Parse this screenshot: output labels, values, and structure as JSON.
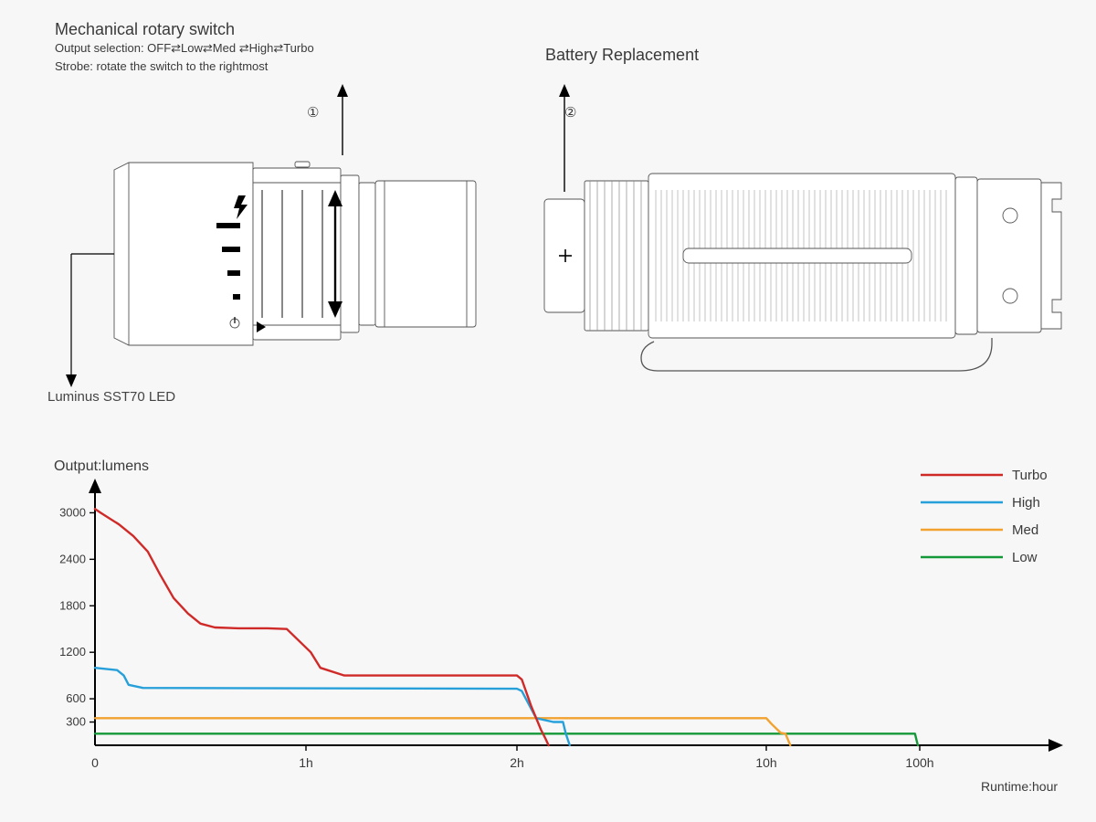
{
  "annotations": {
    "switch_title": "Mechanical rotary switch",
    "switch_line1": "Output selection: OFF⇄Low⇄Med ⇄High⇄Turbo",
    "switch_line2": "Strobe: rotate the switch to the rightmost",
    "battery_title": "Battery Replacement",
    "led_label": "Luminus SST70 LED",
    "callout1": "①",
    "callout2": "②"
  },
  "diagram": {
    "stroke": "#555555",
    "stroke_width": 0.9,
    "fill": "#ffffff",
    "arrow_color": "#000000"
  },
  "chart": {
    "type": "line",
    "title": "Output:lumens",
    "xlabel": "Runtime:hour",
    "x_ticks": [
      "0",
      "1h",
      "2h",
      "10h",
      "100h"
    ],
    "x_tick_pos": [
      0,
      0.22,
      0.44,
      0.7,
      0.86
    ],
    "y_ticks": [
      3000,
      2400,
      1800,
      1200,
      600,
      300
    ],
    "y_max_for_scale": 3300,
    "background": "#f7f7f8",
    "axis_color": "#000000",
    "tick_mark_color": "#000000",
    "line_width": 2.4,
    "legend": [
      {
        "label": "Turbo",
        "color": "#cf2a28"
      },
      {
        "label": "High",
        "color": "#27a0da"
      },
      {
        "label": "Med",
        "color": "#f2a22e"
      },
      {
        "label": "Low",
        "color": "#159838"
      }
    ],
    "series": {
      "Turbo": {
        "color": "#cf2a28",
        "points": [
          [
            0,
            3050
          ],
          [
            0.006,
            3000
          ],
          [
            0.025,
            2850
          ],
          [
            0.04,
            2700
          ],
          [
            0.055,
            2500
          ],
          [
            0.068,
            2200
          ],
          [
            0.082,
            1900
          ],
          [
            0.097,
            1700
          ],
          [
            0.11,
            1570
          ],
          [
            0.125,
            1520
          ],
          [
            0.15,
            1510
          ],
          [
            0.18,
            1510
          ],
          [
            0.2,
            1500
          ],
          [
            0.225,
            1200
          ],
          [
            0.235,
            1000
          ],
          [
            0.26,
            900
          ],
          [
            0.44,
            900
          ],
          [
            0.445,
            850
          ],
          [
            0.455,
            500
          ],
          [
            0.465,
            200
          ],
          [
            0.47,
            80
          ],
          [
            0.473,
            0
          ]
        ]
      },
      "High": {
        "color": "#27a0da",
        "points": [
          [
            0,
            1000
          ],
          [
            0.023,
            970
          ],
          [
            0.03,
            900
          ],
          [
            0.035,
            780
          ],
          [
            0.05,
            740
          ],
          [
            0.44,
            730
          ],
          [
            0.445,
            700
          ],
          [
            0.46,
            350
          ],
          [
            0.478,
            300
          ],
          [
            0.488,
            300
          ],
          [
            0.491,
            150
          ],
          [
            0.495,
            0
          ]
        ]
      },
      "Med": {
        "color": "#f2a22e",
        "points": [
          [
            0,
            350
          ],
          [
            0.7,
            350
          ],
          [
            0.705,
            280
          ],
          [
            0.715,
            160
          ],
          [
            0.72,
            150
          ],
          [
            0.725,
            0
          ]
        ]
      },
      "Low": {
        "color": "#159838",
        "points": [
          [
            0,
            150
          ],
          [
            0.855,
            150
          ],
          [
            0.858,
            0
          ]
        ]
      }
    }
  }
}
